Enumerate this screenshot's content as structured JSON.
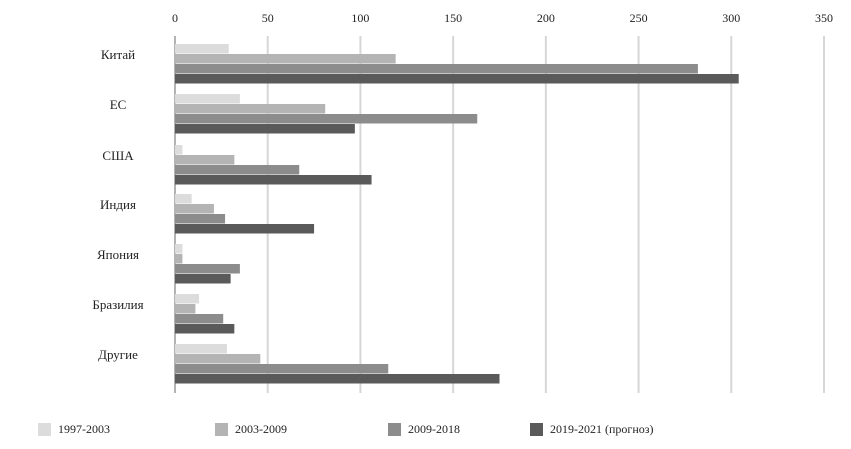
{
  "chart_data": {
    "type": "bar",
    "orientation": "horizontal",
    "categories": [
      "Китай",
      "ЕС",
      "США",
      "Индия",
      "Япония",
      "Бразилия",
      "Другие"
    ],
    "series": [
      {
        "name": "1997-2003",
        "color": "#dcdcdc",
        "values": [
          29,
          35,
          4,
          9,
          4,
          13,
          28
        ]
      },
      {
        "name": "2003-2009",
        "color": "#b4b4b4",
        "values": [
          119,
          81,
          32,
          21,
          4,
          11,
          46
        ]
      },
      {
        "name": "2009-2018",
        "color": "#8c8c8c",
        "values": [
          282,
          163,
          67,
          27,
          35,
          26,
          115
        ]
      },
      {
        "name": "2019-2021 (прогноз)",
        "color": "#5a5a5a",
        "values": [
          304,
          97,
          106,
          75,
          30,
          32,
          175
        ]
      }
    ],
    "xlim": [
      0,
      350
    ],
    "xticks": [
      0,
      50,
      100,
      150,
      200,
      250,
      300,
      350
    ],
    "xaxis_position": "top",
    "grid": true,
    "legend_position": "bottom",
    "title": "",
    "xlabel": "",
    "ylabel": ""
  }
}
